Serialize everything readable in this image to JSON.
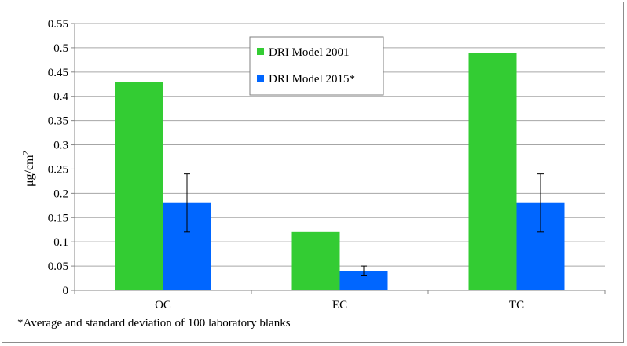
{
  "chart_data": {
    "type": "bar",
    "categories": [
      "OC",
      "EC",
      "TC"
    ],
    "series": [
      {
        "name": "DRI Model 2001",
        "values": [
          0.43,
          0.12,
          0.49
        ],
        "color": "#33cc33"
      },
      {
        "name": "DRI Model 2015*",
        "values": [
          0.18,
          0.04,
          0.18
        ],
        "error": [
          0.06,
          0.01,
          0.06
        ],
        "color": "#0066ff"
      }
    ],
    "ylabel_base": "μg/cm",
    "ylabel_sup": "2",
    "ylim": [
      0,
      0.55
    ],
    "yticks": [
      0,
      0.05,
      0.1,
      0.15,
      0.2,
      0.25,
      0.3,
      0.35,
      0.4,
      0.45,
      0.5,
      0.55
    ],
    "ytick_labels": [
      "0",
      "0.05",
      "0.1",
      "0.15",
      "0.2",
      "0.25",
      "0.3",
      "0.35",
      "0.4",
      "0.45",
      "0.5",
      "0.55"
    ],
    "grid": true,
    "legend_position": "top-center",
    "footnote": "*Average and standard deviation of 100 laboratory blanks"
  }
}
